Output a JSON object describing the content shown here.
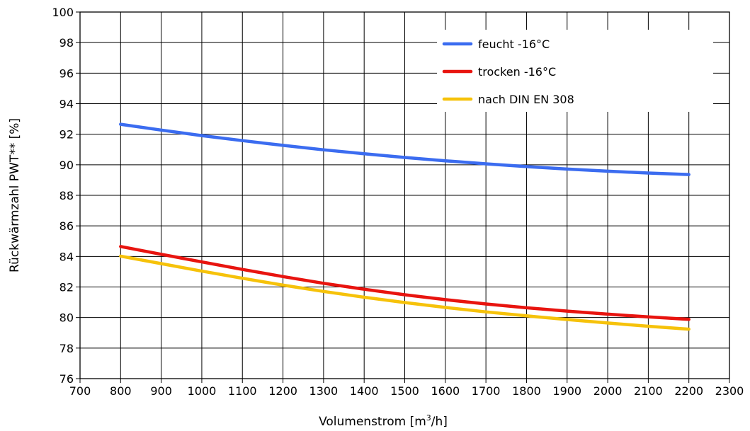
{
  "chart_data": {
    "type": "line",
    "title": "",
    "xlabel": "Volumenstrom [m³/h]",
    "xlabel_main": "Volumenstrom [m",
    "xlabel_sup": "3",
    "xlabel_tail": "/h]",
    "ylabel": "Rückwärmzahl PWT** [%]",
    "xlim": [
      700,
      2300
    ],
    "ylim": [
      76,
      100
    ],
    "x_ticks": [
      "700",
      "800",
      "900",
      "1000",
      "1100",
      "1200",
      "1300",
      "1400",
      "1500",
      "1600",
      "1700",
      "1800",
      "1900",
      "2000",
      "2100",
      "2200",
      "2300"
    ],
    "y_ticks": [
      "76",
      "78",
      "80",
      "82",
      "84",
      "86",
      "88",
      "90",
      "92",
      "94",
      "96",
      "98",
      "100"
    ],
    "grid": true,
    "legend_position": "top-right",
    "x": [
      800,
      900,
      1000,
      1100,
      1200,
      1300,
      1400,
      1500,
      1600,
      1700,
      1800,
      1900,
      2000,
      2100,
      2200
    ],
    "series": [
      {
        "name": "feucht -16°C",
        "color": "#3b6cf0",
        "values": [
          92.65,
          92.27,
          91.91,
          91.58,
          91.27,
          90.98,
          90.72,
          90.48,
          90.26,
          90.06,
          89.88,
          89.72,
          89.58,
          89.46,
          89.36
        ]
      },
      {
        "name": "trocken -16°C",
        "color": "#e8140f",
        "values": [
          84.65,
          84.14,
          83.64,
          83.15,
          82.68,
          82.24,
          81.85,
          81.49,
          81.17,
          80.89,
          80.64,
          80.42,
          80.22,
          80.04,
          79.88
        ]
      },
      {
        "name": "nach DIN EN 308",
        "color": "#f6c20a",
        "values": [
          84.02,
          83.53,
          83.04,
          82.57,
          82.12,
          81.71,
          81.33,
          80.98,
          80.66,
          80.37,
          80.11,
          79.87,
          79.64,
          79.43,
          79.24
        ]
      }
    ]
  }
}
